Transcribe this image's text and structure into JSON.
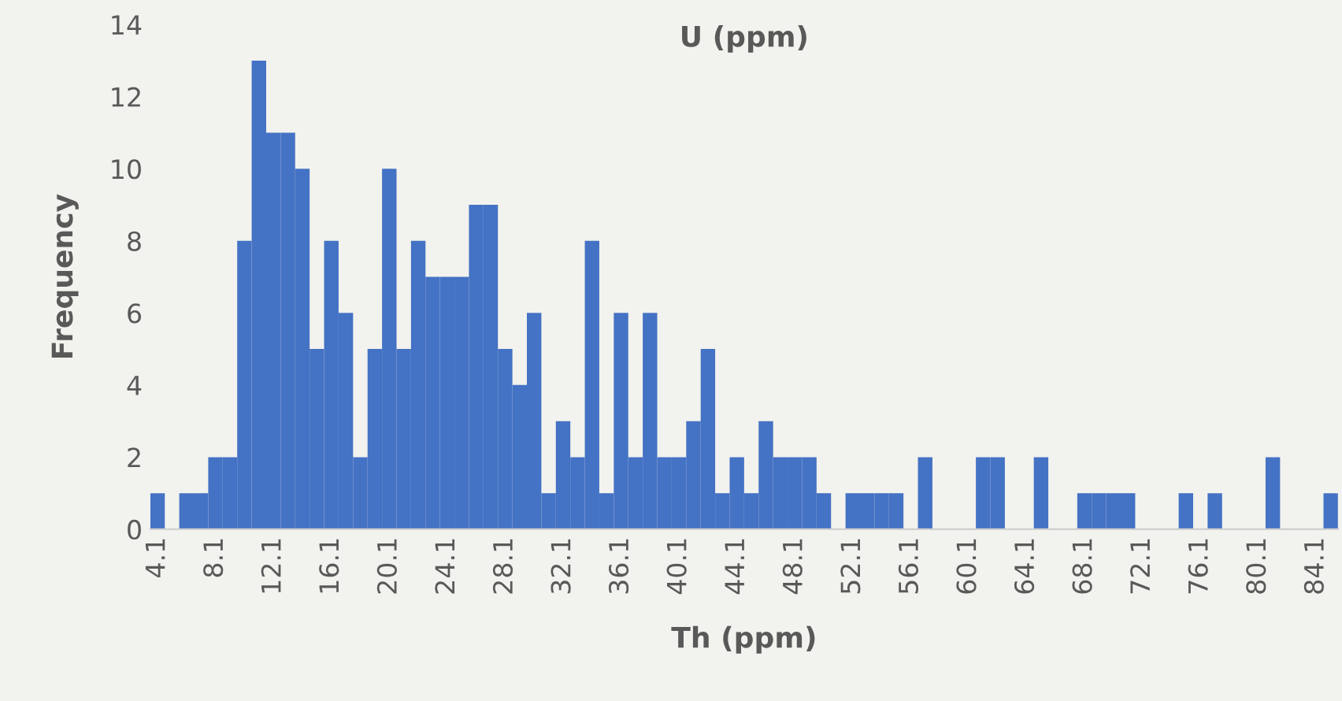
{
  "chart_data": {
    "type": "bar",
    "title": "U (ppm)",
    "xlabel": "Th (ppm)",
    "ylabel": "Frequency",
    "categories": [
      "4.1",
      null,
      null,
      null,
      "8.1",
      null,
      null,
      null,
      "12.1",
      null,
      null,
      null,
      "16.1",
      null,
      null,
      null,
      "20.1",
      null,
      null,
      null,
      "24.1",
      null,
      null,
      null,
      "28.1",
      null,
      null,
      null,
      "32.1",
      null,
      null,
      null,
      "36.1",
      null,
      null,
      null,
      "40.1",
      null,
      null,
      null,
      "44.1",
      null,
      null,
      null,
      "48.1",
      null,
      null,
      null,
      "52.1",
      null,
      null,
      null,
      "56.1",
      null,
      null,
      null,
      "60.1",
      null,
      null,
      null,
      "64.1",
      null,
      null,
      null,
      "68.1",
      null,
      null,
      null,
      "72.1",
      null,
      null,
      null,
      "76.1",
      null,
      null,
      null,
      "80.1",
      null,
      null,
      null,
      "84.1",
      null
    ],
    "values": [
      1,
      0,
      1,
      1,
      2,
      2,
      8,
      13,
      11,
      11,
      10,
      5,
      8,
      6,
      2,
      5,
      10,
      5,
      8,
      7,
      7,
      7,
      9,
      9,
      5,
      4,
      6,
      1,
      3,
      2,
      8,
      1,
      6,
      2,
      6,
      2,
      2,
      3,
      5,
      1,
      2,
      1,
      3,
      2,
      2,
      2,
      1,
      0,
      1,
      1,
      1,
      1,
      0,
      2,
      0,
      0,
      0,
      2,
      2,
      0,
      0,
      2,
      0,
      0,
      1,
      1,
      1,
      1,
      0,
      0,
      0,
      1,
      0,
      1,
      0,
      0,
      0,
      2,
      0,
      0,
      0,
      1
    ],
    "color": "#4472c4",
    "ylim": [
      0,
      14
    ],
    "yticks": [
      0,
      2,
      4,
      6,
      8,
      10,
      12,
      14
    ],
    "grid": false
  }
}
